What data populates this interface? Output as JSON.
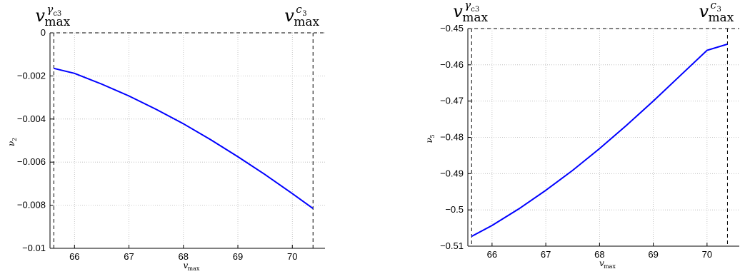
{
  "chart_data": [
    {
      "type": "line",
      "xlabel": "v_max",
      "ylabel": "ν_2",
      "xlim": [
        65.55,
        70.6
      ],
      "ylim": [
        -0.01,
        0
      ],
      "xticks": [
        66,
        67,
        68,
        69,
        70
      ],
      "xtick_labels": [
        "66",
        "67",
        "68",
        "69",
        "70"
      ],
      "yticks": [
        -0.01,
        -0.008,
        -0.006,
        -0.004,
        -0.002,
        0
      ],
      "ytick_labels": [
        "-0.01",
        "-0.008",
        "-0.006",
        "-0.004",
        "-0.002",
        "0"
      ],
      "grid": true,
      "color": "#0000ff",
      "series": [
        {
          "x": [
            65.62,
            66,
            66.5,
            67,
            67.5,
            68,
            68.5,
            69,
            69.5,
            70,
            70.38
          ],
          "values": [
            -0.00165,
            -0.00188,
            -0.00238,
            -0.00293,
            -0.00355,
            -0.00422,
            -0.00496,
            -0.00575,
            -0.00658,
            -0.00746,
            -0.00815
          ]
        }
      ],
      "vlines": [
        {
          "x": 65.62,
          "label_base": "v",
          "label_sub": "max",
          "label_sup": "γ",
          "label_supsub": "c3"
        },
        {
          "x": 70.38,
          "label_base": "v",
          "label_sub": "max",
          "label_sup": "c",
          "label_supsub": "3"
        }
      ],
      "hline": {
        "y": 0
      }
    },
    {
      "type": "line",
      "xlabel": "v_max",
      "ylabel": "ν_5",
      "xlim": [
        65.55,
        70.6
      ],
      "ylim": [
        -0.51,
        -0.45
      ],
      "xticks": [
        66,
        67,
        68,
        69,
        70
      ],
      "xtick_labels": [
        "66",
        "67",
        "68",
        "69",
        "70"
      ],
      "yticks": [
        -0.51,
        -0.5,
        -0.49,
        -0.48,
        -0.47,
        -0.46,
        -0.45
      ],
      "ytick_labels": [
        "-0.51",
        "-0.5",
        "-0.49",
        "-0.48",
        "-0.47",
        "-0.46",
        "-0.45"
      ],
      "grid": true,
      "color": "#0000ff",
      "series": [
        {
          "x": [
            65.62,
            66,
            66.5,
            67,
            67.5,
            68,
            68.5,
            69,
            69.5,
            70,
            70.38
          ],
          "values": [
            -0.5073,
            -0.5043,
            -0.4997,
            -0.4946,
            -0.4891,
            -0.4831,
            -0.4767,
            -0.47,
            -0.463,
            -0.456,
            -0.4543
          ]
        }
      ],
      "vlines": [
        {
          "x": 65.62,
          "label_base": "v",
          "label_sub": "max",
          "label_sup": "γ",
          "label_supsub": "c3"
        },
        {
          "x": 70.38,
          "label_base": "v",
          "label_sub": "max",
          "label_sup": "c",
          "label_supsub": "3"
        }
      ],
      "hline": {
        "y": -0.45
      }
    }
  ]
}
